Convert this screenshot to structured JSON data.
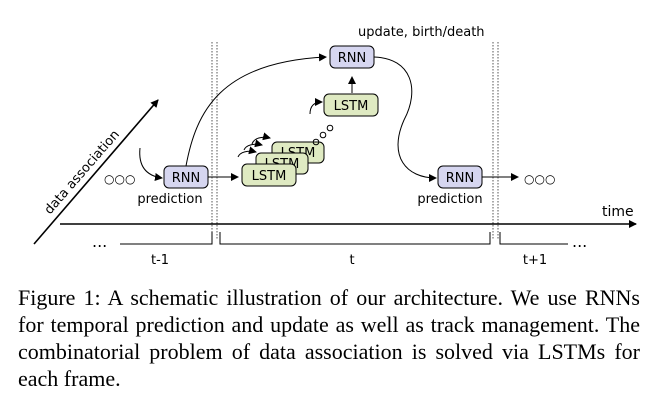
{
  "diagram": {
    "box_rnn": "RNN",
    "box_lstm": "LSTM",
    "label_prediction": "prediction",
    "label_update": "update, birth/death",
    "label_time": "time",
    "label_data_association": "data association",
    "ellipsis_circles": "○○○",
    "ellipsis_dots": "...",
    "segment_prev": "t-1",
    "segment_curr": "t",
    "segment_next": "t+1",
    "colors": {
      "rnn_fill": "#d6d6f0",
      "lstm_fill": "#dfeac2",
      "stroke": "#000000"
    }
  },
  "caption": {
    "label": "Figure 1:",
    "text": "A schematic illustration of our architecture. We use RNNs for temporal prediction and update as well as track management. The combinatorial problem of data association is solved via LSTMs for each frame."
  }
}
